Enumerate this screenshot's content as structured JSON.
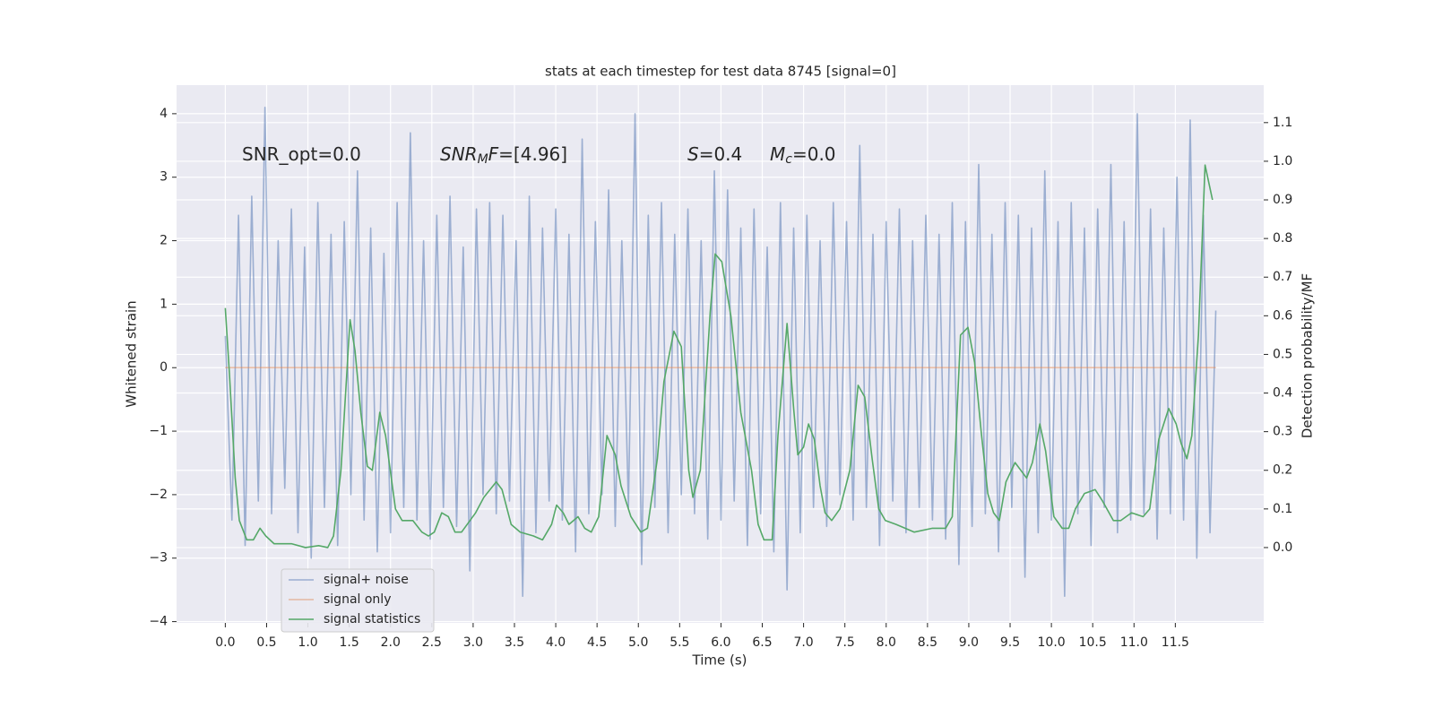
{
  "chart_data": {
    "type": "line",
    "title": "stats at each timestep for test data 8745 [signal=0]",
    "x_label": "Time (s)",
    "y_label": "Whitened strain",
    "y2_label": "Detection probability/MF",
    "grid": true,
    "legend_loc": "lower left",
    "background": "#eaeaf2",
    "xlim": [
      -0.59,
      12.57
    ],
    "ylim": [
      -4.02,
      4.45
    ],
    "y2lim": [
      -0.195,
      1.197
    ],
    "xticks": [
      {
        "value": 0,
        "label": "0.0"
      },
      0.5,
      {
        "value": 1,
        "label": "1.0"
      },
      1.5,
      {
        "value": 2,
        "label": "2.0"
      },
      2.5,
      {
        "value": 3,
        "label": "3.0"
      },
      3.5,
      {
        "value": 4,
        "label": "4.0"
      },
      4.5,
      {
        "value": 5,
        "label": "5.0"
      },
      5.5,
      {
        "value": 6,
        "label": "6.0"
      },
      6.5,
      {
        "value": 7,
        "label": "7.0"
      },
      7.5,
      {
        "value": 8,
        "label": "8.0"
      },
      8.5,
      {
        "value": 9,
        "label": "9.0"
      },
      9.5,
      {
        "value": 10,
        "label": "10.0"
      },
      10.5,
      {
        "value": 11,
        "label": "11.0"
      },
      11.5
    ],
    "yticks": [
      {
        "value": -4,
        "label": "−4"
      },
      {
        "value": -3,
        "label": "−3"
      },
      {
        "value": -2,
        "label": "−2"
      },
      {
        "value": -1,
        "label": "−1"
      },
      0,
      1,
      2,
      3,
      4
    ],
    "y2ticks": [
      {
        "value": 0,
        "label": "0.0"
      },
      0.1,
      0.2,
      0.3,
      0.4,
      0.5,
      0.6,
      0.7,
      0.8,
      0.9,
      {
        "value": 1,
        "label": "1.0"
      },
      1.1
    ],
    "annotations": [
      {
        "text": "SNR_opt=0.0"
      },
      {
        "base": "SNR",
        "sub": "M",
        "var": "F",
        "rest": "=[4.96]"
      },
      {
        "var": "S",
        "rest": "=0.4"
      },
      {
        "base": "M",
        "sub": "c",
        "rest": "=0.0"
      }
    ],
    "series": [
      {
        "name": "signal+ noise",
        "color": "#4c72b0",
        "opacity": 0.5,
        "x": [
          0,
          0.08,
          0.16,
          0.24,
          0.32,
          0.4,
          0.48,
          0.56,
          0.64,
          0.72,
          0.8,
          0.88,
          0.96,
          1.04,
          1.12,
          1.2,
          1.28,
          1.36,
          1.44,
          1.52,
          1.6,
          1.68,
          1.76,
          1.84,
          1.92,
          2.0,
          2.08,
          2.16,
          2.24,
          2.32,
          2.4,
          2.48,
          2.56,
          2.64,
          2.72,
          2.8,
          2.88,
          2.96,
          3.04,
          3.12,
          3.2,
          3.28,
          3.36,
          3.44,
          3.52,
          3.6,
          3.68,
          3.76,
          3.84,
          3.92,
          4.0,
          4.08,
          4.16,
          4.24,
          4.32,
          4.4,
          4.48,
          4.56,
          4.64,
          4.72,
          4.8,
          4.88,
          4.96,
          5.04,
          5.12,
          5.2,
          5.28,
          5.36,
          5.44,
          5.52,
          5.6,
          5.68,
          5.76,
          5.84,
          5.92,
          6.0,
          6.08,
          6.16,
          6.24,
          6.32,
          6.4,
          6.48,
          6.56,
          6.64,
          6.72,
          6.8,
          6.88,
          6.96,
          7.04,
          7.12,
          7.2,
          7.28,
          7.36,
          7.44,
          7.52,
          7.6,
          7.68,
          7.76,
          7.84,
          7.92,
          8.0,
          8.08,
          8.16,
          8.24,
          8.32,
          8.4,
          8.48,
          8.56,
          8.64,
          8.72,
          8.8,
          8.88,
          8.96,
          9.04,
          9.12,
          9.2,
          9.28,
          9.36,
          9.44,
          9.52,
          9.6,
          9.68,
          9.76,
          9.84,
          9.92,
          10.0,
          10.08,
          10.16,
          10.24,
          10.32,
          10.4,
          10.48,
          10.56,
          10.64,
          10.72,
          10.8,
          10.88,
          10.96,
          11.04,
          11.12,
          11.2,
          11.28,
          11.36,
          11.44,
          11.52,
          11.6,
          11.68,
          11.76,
          11.84,
          11.92,
          11.99
        ],
        "values": [
          0.5,
          -2.4,
          2.4,
          -2.8,
          2.7,
          -2.1,
          4.1,
          -2.3,
          2.0,
          -1.9,
          2.5,
          -2.6,
          1.9,
          -3.0,
          2.6,
          -2.2,
          2.1,
          -2.8,
          2.3,
          -2.0,
          3.1,
          -2.4,
          2.2,
          -2.9,
          1.8,
          -2.6,
          2.6,
          -2.2,
          3.7,
          -2.4,
          2.0,
          -2.7,
          2.4,
          -2.2,
          2.7,
          -2.5,
          1.9,
          -3.2,
          2.5,
          -2.0,
          2.6,
          -2.3,
          2.4,
          -2.1,
          2.0,
          -3.6,
          2.7,
          -2.6,
          2.2,
          -2.1,
          2.5,
          -2.4,
          2.1,
          -2.9,
          3.6,
          -2.3,
          2.3,
          -2.0,
          2.8,
          -2.5,
          2.0,
          -2.2,
          4.0,
          -3.1,
          2.4,
          -2.2,
          2.6,
          -2.6,
          2.1,
          -2.0,
          2.5,
          -2.3,
          2.0,
          -2.7,
          3.1,
          -2.4,
          2.8,
          -2.1,
          2.2,
          -2.8,
          2.5,
          -2.3,
          1.9,
          -2.9,
          2.6,
          -3.5,
          2.2,
          -2.6,
          2.4,
          -2.2,
          2.0,
          -2.5,
          2.6,
          -2.0,
          2.3,
          -2.4,
          3.5,
          -2.2,
          2.1,
          -2.8,
          2.3,
          -2.1,
          2.5,
          -2.6,
          2.0,
          -2.2,
          2.4,
          -2.4,
          2.1,
          -2.7,
          2.6,
          -3.1,
          2.3,
          -2.5,
          3.2,
          -2.3,
          2.1,
          -2.9,
          2.6,
          -2.2,
          2.4,
          -3.3,
          2.2,
          -2.6,
          3.1,
          -2.4,
          2.3,
          -3.6,
          2.6,
          -2.3,
          2.2,
          -2.8,
          2.5,
          -2.2,
          3.2,
          -2.6,
          2.3,
          -2.4,
          4.0,
          -2.3,
          2.5,
          -2.7,
          2.2,
          -2.3,
          3.0,
          -2.4,
          3.9,
          -3.0,
          2.4,
          -2.6,
          0.9
        ]
      },
      {
        "name": "signal only",
        "color": "#dd8452",
        "opacity": 0.5,
        "x": [
          0,
          11.99
        ],
        "values": [
          0,
          0
        ]
      },
      {
        "name": "signal statistics",
        "color": "#55a868",
        "opacity": 1,
        "axis": "y2",
        "x": [
          0.0,
          0.05,
          0.12,
          0.17,
          0.26,
          0.34,
          0.42,
          0.49,
          0.59,
          0.69,
          0.8,
          0.97,
          1.13,
          1.24,
          1.31,
          1.4,
          1.51,
          1.57,
          1.64,
          1.72,
          1.78,
          1.87,
          1.94,
          2.06,
          2.14,
          2.27,
          2.38,
          2.46,
          2.53,
          2.62,
          2.7,
          2.78,
          2.86,
          3.03,
          3.13,
          3.28,
          3.35,
          3.46,
          3.57,
          3.73,
          3.84,
          3.95,
          4.01,
          4.09,
          4.16,
          4.27,
          4.35,
          4.43,
          4.52,
          4.62,
          4.72,
          4.79,
          4.91,
          5.03,
          5.11,
          5.23,
          5.31,
          5.43,
          5.52,
          5.61,
          5.66,
          5.75,
          5.87,
          5.93,
          6.01,
          6.12,
          6.24,
          6.37,
          6.45,
          6.52,
          6.62,
          6.69,
          6.8,
          6.88,
          6.93,
          7.0,
          7.06,
          7.13,
          7.2,
          7.26,
          7.34,
          7.44,
          7.56,
          7.66,
          7.74,
          7.83,
          7.91,
          7.99,
          8.12,
          8.34,
          8.56,
          8.72,
          8.8,
          8.9,
          8.99,
          9.07,
          9.15,
          9.23,
          9.3,
          9.37,
          9.45,
          9.56,
          9.7,
          9.77,
          9.86,
          9.93,
          10.03,
          10.13,
          10.21,
          10.29,
          10.4,
          10.53,
          10.62,
          10.75,
          10.84,
          10.97,
          11.11,
          11.19,
          11.3,
          11.42,
          11.51,
          11.57,
          11.64,
          11.7,
          11.78,
          11.86,
          11.93,
          11.95
        ],
        "values": [
          0.62,
          0.45,
          0.18,
          0.07,
          0.02,
          0.02,
          0.05,
          0.03,
          0.01,
          0.01,
          0.01,
          0.0,
          0.005,
          0.0,
          0.03,
          0.2,
          0.59,
          0.51,
          0.35,
          0.21,
          0.2,
          0.35,
          0.29,
          0.1,
          0.07,
          0.07,
          0.04,
          0.03,
          0.04,
          0.09,
          0.08,
          0.04,
          0.04,
          0.09,
          0.13,
          0.17,
          0.15,
          0.06,
          0.04,
          0.03,
          0.02,
          0.06,
          0.11,
          0.09,
          0.06,
          0.08,
          0.05,
          0.04,
          0.08,
          0.29,
          0.24,
          0.16,
          0.08,
          0.04,
          0.05,
          0.23,
          0.43,
          0.56,
          0.52,
          0.2,
          0.13,
          0.2,
          0.61,
          0.76,
          0.74,
          0.6,
          0.35,
          0.2,
          0.06,
          0.02,
          0.02,
          0.29,
          0.58,
          0.36,
          0.24,
          0.26,
          0.32,
          0.28,
          0.16,
          0.09,
          0.07,
          0.1,
          0.2,
          0.42,
          0.39,
          0.23,
          0.1,
          0.07,
          0.06,
          0.04,
          0.05,
          0.05,
          0.08,
          0.55,
          0.57,
          0.48,
          0.3,
          0.14,
          0.09,
          0.07,
          0.17,
          0.22,
          0.18,
          0.22,
          0.32,
          0.25,
          0.08,
          0.05,
          0.05,
          0.1,
          0.14,
          0.15,
          0.12,
          0.07,
          0.07,
          0.09,
          0.08,
          0.1,
          0.28,
          0.36,
          0.32,
          0.27,
          0.23,
          0.29,
          0.55,
          0.99,
          0.92,
          0.9
        ]
      }
    ]
  }
}
